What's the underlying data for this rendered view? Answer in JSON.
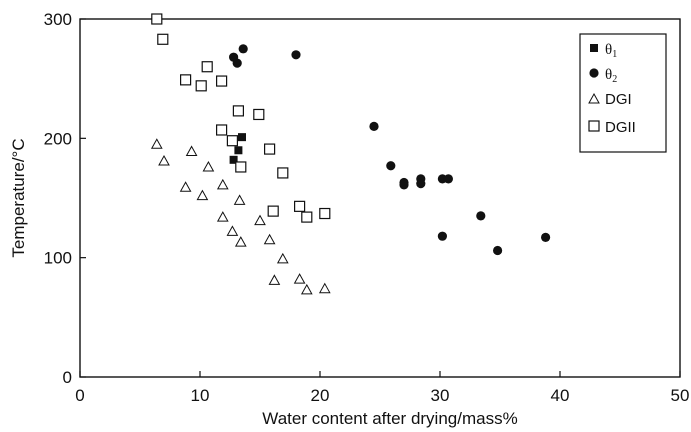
{
  "chart_data": {
    "type": "scatter",
    "xlabel": "Water content after drying/mass%",
    "ylabel": "Temperature/°C",
    "xlim": [
      0,
      50
    ],
    "ylim": [
      0,
      300
    ],
    "xticks": [
      0,
      10,
      20,
      30,
      40,
      50
    ],
    "yticks": [
      0,
      100,
      200,
      300
    ],
    "grid": false,
    "legend_position": "top-right",
    "series": [
      {
        "name": "θ1",
        "marker": "filled-square",
        "points": [
          [
            13.5,
            201
          ],
          [
            13.2,
            190
          ],
          [
            12.8,
            182
          ]
        ]
      },
      {
        "name": "θ2",
        "marker": "filled-circle",
        "points": [
          [
            12.8,
            268
          ],
          [
            13.1,
            263
          ],
          [
            13.6,
            275
          ],
          [
            18.0,
            270
          ],
          [
            24.5,
            210
          ],
          [
            25.9,
            177
          ],
          [
            27.0,
            163
          ],
          [
            27.0,
            161
          ],
          [
            28.4,
            166
          ],
          [
            28.4,
            162
          ],
          [
            30.2,
            166
          ],
          [
            30.7,
            166
          ],
          [
            33.4,
            135
          ],
          [
            30.2,
            118
          ],
          [
            34.8,
            106
          ],
          [
            38.8,
            117
          ]
        ]
      },
      {
        "name": "DGI",
        "marker": "open-triangle",
        "points": [
          [
            6.4,
            195
          ],
          [
            7.0,
            181
          ],
          [
            9.3,
            189
          ],
          [
            10.7,
            176
          ],
          [
            8.8,
            159
          ],
          [
            10.2,
            152
          ],
          [
            11.9,
            161
          ],
          [
            13.3,
            148
          ],
          [
            11.9,
            134
          ],
          [
            12.7,
            122
          ],
          [
            13.4,
            113
          ],
          [
            15.0,
            131
          ],
          [
            15.8,
            115
          ],
          [
            16.9,
            99
          ],
          [
            16.2,
            81
          ],
          [
            18.3,
            82
          ],
          [
            18.9,
            73
          ],
          [
            20.4,
            74
          ]
        ]
      },
      {
        "name": "DGII",
        "marker": "open-square",
        "points": [
          [
            6.4,
            300
          ],
          [
            6.9,
            283
          ],
          [
            8.8,
            249
          ],
          [
            10.6,
            260
          ],
          [
            10.1,
            244
          ],
          [
            11.8,
            248
          ],
          [
            13.2,
            223
          ],
          [
            14.9,
            220
          ],
          [
            11.8,
            207
          ],
          [
            12.7,
            198
          ],
          [
            13.4,
            176
          ],
          [
            15.8,
            191
          ],
          [
            16.9,
            171
          ],
          [
            16.1,
            139
          ],
          [
            18.3,
            143
          ],
          [
            18.9,
            134
          ],
          [
            20.4,
            137
          ]
        ]
      }
    ]
  },
  "legend": {
    "theta_symbol": "θ",
    "theta1_sub": "1",
    "theta2_sub": "2",
    "dgi": "DGI",
    "dgii": "DGII"
  }
}
